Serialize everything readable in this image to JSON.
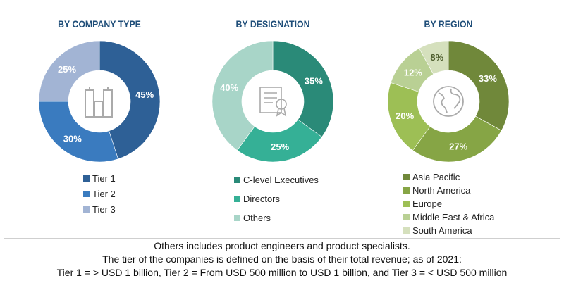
{
  "chart_data": [
    {
      "type": "pie",
      "donut": true,
      "title": "BY COMPANY TYPE",
      "center_icon": "buildings-icon",
      "categories": [
        "Tier 1",
        "Tier 2",
        "Tier 3"
      ],
      "values": [
        45,
        30,
        25
      ],
      "labels": [
        "45%",
        "30%",
        "25%"
      ],
      "colors": [
        "#2e6096",
        "#3a7bbf",
        "#a2b4d4"
      ]
    },
    {
      "type": "pie",
      "donut": true,
      "title": "BY DESIGNATION",
      "center_icon": "certificate-icon",
      "categories": [
        "C-level Executives",
        "Directors",
        "Others"
      ],
      "values": [
        35,
        25,
        40
      ],
      "labels": [
        "35%",
        "25%",
        "40%"
      ],
      "colors": [
        "#2a8a78",
        "#35b096",
        "#a8d5c8"
      ]
    },
    {
      "type": "pie",
      "donut": true,
      "title": "BY REGION",
      "center_icon": "globe-icon",
      "categories": [
        "Asia Pacific",
        "North America",
        "Europe",
        "Middle East & Africa",
        "South America"
      ],
      "values": [
        33,
        27,
        20,
        12,
        8
      ],
      "labels": [
        "33%",
        "27%",
        "20%",
        "12%",
        "8%"
      ],
      "colors": [
        "#70883a",
        "#86a545",
        "#9dbf55",
        "#b9d094",
        "#d5e0bd"
      ],
      "label_colors": [
        "#fff",
        "#fff",
        "#fff",
        "#fff",
        "#4a5a2a"
      ]
    }
  ],
  "footer": {
    "line1": "Others includes product engineers and product specialists.",
    "line2": "The tier of the companies is defined on the basis of their total revenue; as of 2021:",
    "line3": "Tier 1 = > USD 1 billion, Tier 2 = From USD 500 million to USD 1 billion, and Tier 3 = < USD 500 million"
  }
}
